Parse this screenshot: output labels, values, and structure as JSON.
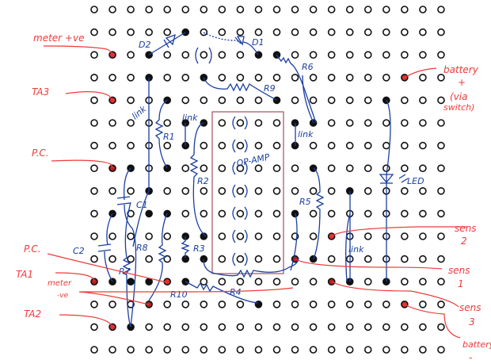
{
  "board": {
    "columns": 20,
    "rows": 16,
    "colors": {
      "wire": "#1a3fa0",
      "label": "#f03a3a",
      "solder": "#111111",
      "ic_outline": "#a05060"
    },
    "filled_holes": [
      {
        "row": 1,
        "col": 5,
        "color": "#111111"
      },
      {
        "row": 2,
        "col": 1,
        "color": "#e03030"
      },
      {
        "row": 2,
        "col": 3,
        "color": "#111111"
      },
      {
        "row": 2,
        "col": 9,
        "color": "#111111"
      },
      {
        "row": 2,
        "col": 10,
        "color": "#111111"
      },
      {
        "row": 3,
        "col": 3,
        "color": "#111111"
      },
      {
        "row": 3,
        "col": 6,
        "color": "#111111"
      },
      {
        "row": 3,
        "col": 17,
        "color": "#e03030"
      },
      {
        "row": 4,
        "col": 1,
        "color": "#e03030"
      },
      {
        "row": 4,
        "col": 4,
        "color": "#111111"
      },
      {
        "row": 4,
        "col": 10,
        "color": "#111111"
      },
      {
        "row": 4,
        "col": 16,
        "color": "#111111"
      },
      {
        "row": 5,
        "col": 5,
        "color": "#111111"
      },
      {
        "row": 5,
        "col": 6,
        "color": "#111111"
      },
      {
        "row": 5,
        "col": 11,
        "color": "#111111"
      },
      {
        "row": 5,
        "col": 12,
        "color": "#111111"
      },
      {
        "row": 6,
        "col": 5,
        "color": "#111111"
      },
      {
        "row": 6,
        "col": 11,
        "color": "#111111"
      },
      {
        "row": 7,
        "col": 1,
        "color": "#b02020"
      },
      {
        "row": 7,
        "col": 2,
        "color": "#111111"
      },
      {
        "row": 7,
        "col": 4,
        "color": "#111111"
      },
      {
        "row": 7,
        "col": 12,
        "color": "#111111"
      },
      {
        "row": 8,
        "col": 3,
        "color": "#111111"
      },
      {
        "row": 8,
        "col": 14,
        "color": "#111111"
      },
      {
        "row": 9,
        "col": 1,
        "color": "#111111"
      },
      {
        "row": 9,
        "col": 3,
        "color": "#111111"
      },
      {
        "row": 9,
        "col": 4,
        "color": "#111111"
      },
      {
        "row": 9,
        "col": 11,
        "color": "#111111"
      },
      {
        "row": 10,
        "col": 5,
        "color": "#111111"
      },
      {
        "row": 10,
        "col": 6,
        "color": "#111111"
      },
      {
        "row": 10,
        "col": 13,
        "color": "#e03030"
      },
      {
        "row": 11,
        "col": 5,
        "color": "#111111"
      },
      {
        "row": 11,
        "col": 6,
        "color": "#111111"
      },
      {
        "row": 11,
        "col": 11,
        "color": "#b02020"
      },
      {
        "row": 11,
        "col": 12,
        "color": "#111111"
      },
      {
        "row": 12,
        "col": 0,
        "color": "#b02020"
      },
      {
        "row": 12,
        "col": 1,
        "color": "#111111"
      },
      {
        "row": 12,
        "col": 2,
        "color": "#111111"
      },
      {
        "row": 12,
        "col": 3,
        "color": "#111111"
      },
      {
        "row": 12,
        "col": 4,
        "color": "#e03030"
      },
      {
        "row": 12,
        "col": 5,
        "color": "#111111"
      },
      {
        "row": 12,
        "col": 13,
        "color": "#b02020"
      },
      {
        "row": 12,
        "col": 14,
        "color": "#111111"
      },
      {
        "row": 12,
        "col": 16,
        "color": "#111111"
      },
      {
        "row": 13,
        "col": 3,
        "color": "#b02020"
      },
      {
        "row": 13,
        "col": 9,
        "color": "#111111"
      },
      {
        "row": 13,
        "col": 17,
        "color": "#e03030"
      },
      {
        "row": 14,
        "col": 1,
        "color": "#e03030"
      },
      {
        "row": 14,
        "col": 2,
        "color": "#111111"
      }
    ]
  },
  "components": {
    "d1": "D1",
    "d2": "D2",
    "r1": "R1",
    "r2": "R2",
    "r3": "R3",
    "r4": "R4",
    "r5": "R5",
    "r6": "R6",
    "r7": "R7",
    "r8": "R8",
    "r9": "R9",
    "r10": "R10",
    "c1": "C1",
    "c2": "C2",
    "opamp": "OP-AMP",
    "led": "LED",
    "link": "link"
  },
  "connections": {
    "meter_pos": "meter +ve",
    "ta3": "TA3",
    "pc_top": "P.C.",
    "pc_bottom": "P.C.",
    "ta1": "TA1",
    "meter_neg_1": "meter",
    "meter_neg_2": "-ve",
    "ta2": "TA2",
    "battery_pos_1": "battery",
    "battery_pos_2": "+",
    "battery_pos_3": "(via",
    "battery_pos_4": "switch)",
    "sens2_1": "sens",
    "sens2_2": "2",
    "sens1_1": "sens",
    "sens1_2": "1",
    "sens3_1": "sens",
    "sens3_2": "3",
    "battery_neg_1": "battery",
    "battery_neg_2": "-"
  }
}
